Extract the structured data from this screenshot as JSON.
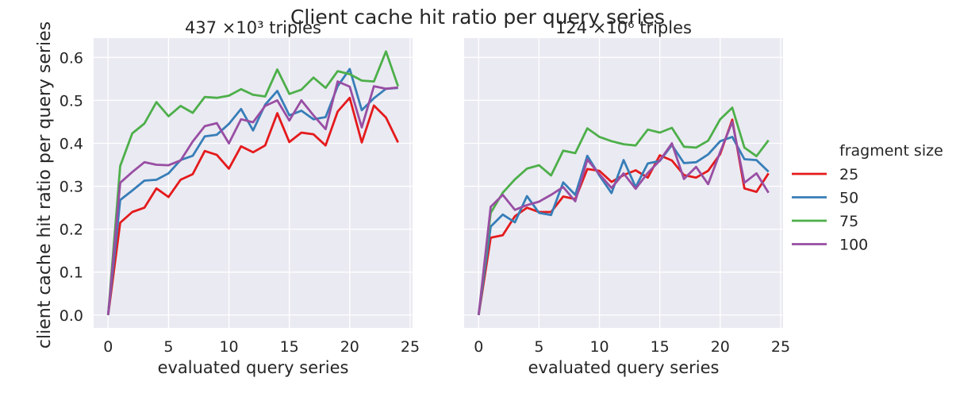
{
  "chart_data": {
    "type": "line",
    "suptitle": "Client cache hit ratio per query series",
    "ylabel": "client cache hit ratio per query series",
    "ylim": [
      -0.03,
      0.645
    ],
    "yticks": [
      0.0,
      0.1,
      0.2,
      0.3,
      0.4,
      0.5,
      0.6
    ],
    "ytick_labels": [
      "0.0",
      "0.1",
      "0.2",
      "0.3",
      "0.4",
      "0.5",
      "0.6"
    ],
    "xlim": [
      -1.2,
      25.2
    ],
    "xticks": [
      0,
      5,
      10,
      15,
      20,
      25
    ],
    "xtick_labels": [
      "0",
      "5",
      "10",
      "15",
      "20",
      "25"
    ],
    "grid": true,
    "legend": {
      "title": "fragment size",
      "placement": "right",
      "entries": [
        "25",
        "50",
        "75",
        "100"
      ]
    },
    "colors": {
      "25": "#e41a1c",
      "50": "#377eb8",
      "75": "#4daf4a",
      "100": "#984ea3"
    },
    "panels": [
      {
        "title": "437 ×10³ triples",
        "xlabel": "evaluated query series",
        "series": [
          {
            "name": "25",
            "x": [
              0,
              1,
              2,
              3,
              4,
              5,
              6,
              7,
              8,
              9,
              10,
              11,
              12,
              13,
              14,
              15,
              16,
              17,
              18,
              19,
              20,
              21,
              22,
              23,
              24
            ],
            "values": [
              0.0,
              0.215,
              0.24,
              0.25,
              0.295,
              0.275,
              0.315,
              0.328,
              0.382,
              0.373,
              0.341,
              0.393,
              0.379,
              0.395,
              0.47,
              0.403,
              0.425,
              0.421,
              0.395,
              0.474,
              0.506,
              0.402,
              0.488,
              0.46,
              0.402
            ]
          },
          {
            "name": "50",
            "x": [
              0,
              1,
              2,
              3,
              4,
              5,
              6,
              7,
              8,
              9,
              10,
              11,
              12,
              13,
              14,
              15,
              16,
              17,
              18,
              19,
              20,
              21,
              22,
              23,
              24
            ],
            "values": [
              0.0,
              0.268,
              0.29,
              0.313,
              0.315,
              0.33,
              0.361,
              0.371,
              0.416,
              0.42,
              0.445,
              0.48,
              0.43,
              0.49,
              0.522,
              0.465,
              0.476,
              0.456,
              0.461,
              0.533,
              0.573,
              0.477,
              0.505,
              0.527,
              0.529
            ]
          },
          {
            "name": "75",
            "x": [
              0,
              1,
              2,
              3,
              4,
              5,
              6,
              7,
              8,
              9,
              10,
              11,
              12,
              13,
              14,
              15,
              16,
              17,
              18,
              19,
              20,
              21,
              22,
              23,
              24
            ],
            "values": [
              0.0,
              0.347,
              0.423,
              0.446,
              0.496,
              0.463,
              0.487,
              0.471,
              0.508,
              0.506,
              0.511,
              0.526,
              0.513,
              0.509,
              0.572,
              0.515,
              0.525,
              0.553,
              0.529,
              0.568,
              0.561,
              0.546,
              0.544,
              0.614,
              0.533
            ]
          },
          {
            "name": "100",
            "x": [
              0,
              1,
              2,
              3,
              4,
              5,
              6,
              7,
              8,
              9,
              10,
              11,
              12,
              13,
              14,
              15,
              16,
              17,
              18,
              19,
              20,
              21,
              22,
              23,
              24
            ],
            "values": [
              0.0,
              0.308,
              0.333,
              0.356,
              0.35,
              0.349,
              0.36,
              0.404,
              0.44,
              0.447,
              0.4,
              0.456,
              0.449,
              0.487,
              0.5,
              0.453,
              0.5,
              0.465,
              0.433,
              0.544,
              0.532,
              0.437,
              0.533,
              0.527,
              0.53
            ]
          }
        ]
      },
      {
        "title": "124 ×10⁶ triples",
        "xlabel": "evaluated query series",
        "series": [
          {
            "name": "25",
            "x": [
              0,
              1,
              2,
              3,
              4,
              5,
              6,
              7,
              8,
              9,
              10,
              11,
              12,
              13,
              14,
              15,
              16,
              17,
              18,
              19,
              20,
              21,
              22,
              23,
              24
            ],
            "values": [
              0.0,
              0.18,
              0.186,
              0.23,
              0.25,
              0.24,
              0.24,
              0.276,
              0.27,
              0.34,
              0.336,
              0.31,
              0.326,
              0.337,
              0.32,
              0.372,
              0.36,
              0.326,
              0.32,
              0.336,
              0.375,
              0.455,
              0.295,
              0.287,
              0.33
            ]
          },
          {
            "name": "50",
            "x": [
              0,
              1,
              2,
              3,
              4,
              5,
              6,
              7,
              8,
              9,
              10,
              11,
              12,
              13,
              14,
              15,
              16,
              17,
              18,
              19,
              20,
              21,
              22,
              23,
              24
            ],
            "values": [
              0.0,
              0.206,
              0.234,
              0.216,
              0.277,
              0.238,
              0.233,
              0.309,
              0.28,
              0.371,
              0.325,
              0.284,
              0.361,
              0.298,
              0.353,
              0.359,
              0.396,
              0.354,
              0.356,
              0.374,
              0.405,
              0.415,
              0.363,
              0.361,
              0.334
            ]
          },
          {
            "name": "75",
            "x": [
              0,
              1,
              2,
              3,
              4,
              5,
              6,
              7,
              8,
              9,
              10,
              11,
              12,
              13,
              14,
              15,
              16,
              17,
              18,
              19,
              20,
              21,
              22,
              23,
              24
            ],
            "values": [
              0.0,
              0.238,
              0.285,
              0.316,
              0.341,
              0.349,
              0.325,
              0.383,
              0.377,
              0.435,
              0.415,
              0.405,
              0.398,
              0.395,
              0.432,
              0.425,
              0.436,
              0.392,
              0.39,
              0.406,
              0.456,
              0.483,
              0.39,
              0.37,
              0.407
            ]
          },
          {
            "name": "100",
            "x": [
              0,
              1,
              2,
              3,
              4,
              5,
              6,
              7,
              8,
              9,
              10,
              11,
              12,
              13,
              14,
              15,
              16,
              17,
              18,
              19,
              20,
              21,
              22,
              23,
              24
            ],
            "values": [
              0.0,
              0.252,
              0.28,
              0.245,
              0.256,
              0.264,
              0.28,
              0.298,
              0.265,
              0.362,
              0.328,
              0.296,
              0.33,
              0.294,
              0.331,
              0.36,
              0.4,
              0.317,
              0.345,
              0.305,
              0.38,
              0.45,
              0.308,
              0.33,
              0.285
            ]
          }
        ]
      }
    ]
  }
}
